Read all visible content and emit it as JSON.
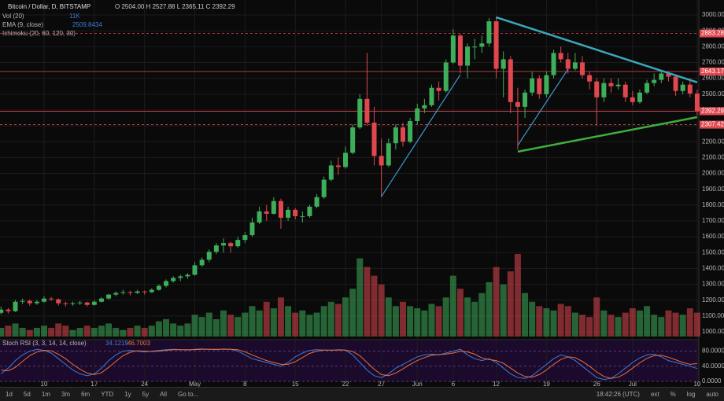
{
  "header": {
    "symbol": "Bitcoin / Dollar, D, BITSTAMP",
    "ohlc": "O 2504.00  H 2527.88  L 2365.11  C 2392.29",
    "volume": "Vol (20)",
    "volume_value": "11K",
    "ema": "EMA (9, close)",
    "ema_value": "2509.8434",
    "ichimoku": "Ichimoku (20, 60, 120, 30)"
  },
  "toolbar": {
    "buttons": [
      "1d",
      "5d",
      "1m",
      "3m",
      "6m",
      "YTD",
      "1y",
      "5y",
      "All",
      "Go to..."
    ],
    "time": "18:42:26 (UTC)",
    "right_buttons": [
      "ext",
      "%",
      "log",
      "auto"
    ]
  },
  "chart_data": {
    "type": "candlestick",
    "up_color": "#3fae5a",
    "down_color": "#e0474f",
    "categories": [
      null,
      null,
      null,
      null,
      null,
      null,
      "10",
      null,
      null,
      null,
      null,
      null,
      null,
      "17",
      null,
      null,
      null,
      null,
      null,
      null,
      "24",
      null,
      null,
      null,
      null,
      null,
      null,
      "May",
      null,
      null,
      null,
      null,
      null,
      null,
      "8",
      null,
      null,
      null,
      null,
      null,
      null,
      "15",
      null,
      null,
      null,
      null,
      null,
      null,
      "22",
      null,
      null,
      null,
      null,
      "27",
      null,
      null,
      null,
      null,
      "Jun",
      null,
      null,
      null,
      null,
      "6",
      null,
      null,
      null,
      null,
      null,
      "12",
      null,
      null,
      null,
      null,
      null,
      null,
      "19",
      null,
      null,
      null,
      null,
      null,
      null,
      "26",
      null,
      null,
      null,
      null,
      "Jul",
      null,
      null,
      null,
      null,
      null,
      null,
      null,
      null,
      "10"
    ],
    "candles": [
      [
        1120,
        1160,
        1110,
        1140
      ],
      [
        1140,
        1150,
        1115,
        1130
      ],
      [
        1130,
        1200,
        1125,
        1190
      ],
      [
        1190,
        1210,
        1175,
        1195
      ],
      [
        1195,
        1205,
        1165,
        1180
      ],
      [
        1180,
        1200,
        1170,
        1190
      ],
      [
        1190,
        1225,
        1185,
        1210
      ],
      [
        1210,
        1220,
        1195,
        1205
      ],
      [
        1205,
        1210,
        1165,
        1180
      ],
      [
        1180,
        1190,
        1160,
        1175
      ],
      [
        1175,
        1190,
        1165,
        1180
      ],
      [
        1180,
        1195,
        1170,
        1185
      ],
      [
        1185,
        1190,
        1160,
        1170
      ],
      [
        1170,
        1200,
        1165,
        1190
      ],
      [
        1190,
        1220,
        1185,
        1210
      ],
      [
        1210,
        1240,
        1205,
        1235
      ],
      [
        1235,
        1255,
        1225,
        1245
      ],
      [
        1245,
        1265,
        1235,
        1250
      ],
      [
        1250,
        1260,
        1230,
        1245
      ],
      [
        1245,
        1265,
        1240,
        1255
      ],
      [
        1255,
        1260,
        1235,
        1250
      ],
      [
        1250,
        1275,
        1245,
        1265
      ],
      [
        1265,
        1300,
        1260,
        1290
      ],
      [
        1290,
        1330,
        1280,
        1320
      ],
      [
        1320,
        1350,
        1310,
        1340
      ],
      [
        1340,
        1360,
        1320,
        1350
      ],
      [
        1350,
        1370,
        1335,
        1360
      ],
      [
        1360,
        1440,
        1355,
        1420
      ],
      [
        1420,
        1470,
        1410,
        1455
      ],
      [
        1455,
        1520,
        1440,
        1505
      ],
      [
        1505,
        1560,
        1490,
        1545
      ],
      [
        1545,
        1590,
        1500,
        1560
      ],
      [
        1560,
        1570,
        1500,
        1540
      ],
      [
        1540,
        1600,
        1530,
        1580
      ],
      [
        1580,
        1630,
        1560,
        1610
      ],
      [
        1610,
        1720,
        1600,
        1690
      ],
      [
        1690,
        1790,
        1680,
        1760
      ],
      [
        1760,
        1800,
        1700,
        1745
      ],
      [
        1745,
        1850,
        1740,
        1825
      ],
      [
        1825,
        1840,
        1650,
        1720
      ],
      [
        1720,
        1790,
        1700,
        1770
      ],
      [
        1770,
        1780,
        1710,
        1730
      ],
      [
        1730,
        1760,
        1690,
        1730
      ],
      [
        1730,
        1800,
        1720,
        1790
      ],
      [
        1790,
        1870,
        1780,
        1850
      ],
      [
        1850,
        1980,
        1840,
        1960
      ],
      [
        1960,
        2080,
        1950,
        2050
      ],
      [
        2050,
        2100,
        1990,
        2040
      ],
      [
        2040,
        2170,
        2030,
        2130
      ],
      [
        2130,
        2310,
        2120,
        2290
      ],
      [
        2290,
        2500,
        2280,
        2470
      ],
      [
        2470,
        2760,
        2300,
        2320
      ],
      [
        2320,
        2420,
        2050,
        2110
      ],
      [
        2110,
        2220,
        1850,
        2050
      ],
      [
        2050,
        2220,
        2040,
        2190
      ],
      [
        2190,
        2310,
        2150,
        2290
      ],
      [
        2290,
        2320,
        2170,
        2200
      ],
      [
        2200,
        2350,
        2190,
        2330
      ],
      [
        2330,
        2440,
        2310,
        2410
      ],
      [
        2410,
        2470,
        2380,
        2430
      ],
      [
        2430,
        2560,
        2420,
        2540
      ],
      [
        2540,
        2580,
        2460,
        2520
      ],
      [
        2520,
        2720,
        2510,
        2700
      ],
      [
        2700,
        2910,
        2690,
        2870
      ],
      [
        2870,
        2880,
        2630,
        2680
      ],
      [
        2680,
        2820,
        2600,
        2800
      ],
      [
        2800,
        2850,
        2720,
        2800
      ],
      [
        2800,
        2870,
        2760,
        2820
      ],
      [
        2820,
        2980,
        2800,
        2960
      ],
      [
        2960,
        2990,
        2600,
        2660
      ],
      [
        2660,
        2770,
        2480,
        2720
      ],
      [
        2720,
        2740,
        2380,
        2450
      ],
      [
        2450,
        2540,
        2150,
        2420
      ],
      [
        2420,
        2530,
        2350,
        2510
      ],
      [
        2510,
        2640,
        2490,
        2600
      ],
      [
        2600,
        2620,
        2470,
        2500
      ],
      [
        2500,
        2640,
        2480,
        2620
      ],
      [
        2620,
        2780,
        2600,
        2760
      ],
      [
        2760,
        2800,
        2700,
        2720
      ],
      [
        2720,
        2760,
        2630,
        2660
      ],
      [
        2660,
        2760,
        2650,
        2700
      ],
      [
        2700,
        2740,
        2600,
        2620
      ],
      [
        2620,
        2640,
        2530,
        2580
      ],
      [
        2580,
        2600,
        2300,
        2480
      ],
      [
        2480,
        2600,
        2450,
        2570
      ],
      [
        2570,
        2600,
        2510,
        2550
      ],
      [
        2550,
        2600,
        2530,
        2560
      ],
      [
        2560,
        2580,
        2450,
        2480
      ],
      [
        2480,
        2520,
        2430,
        2450
      ],
      [
        2450,
        2530,
        2440,
        2510
      ],
      [
        2510,
        2590,
        2500,
        2570
      ],
      [
        2570,
        2630,
        2550,
        2590
      ],
      [
        2590,
        2650,
        2570,
        2630
      ],
      [
        2630,
        2640,
        2580,
        2610
      ],
      [
        2610,
        2620,
        2490,
        2520
      ],
      [
        2520,
        2580,
        2500,
        2560
      ],
      [
        2560,
        2600,
        2480,
        2504
      ],
      [
        2504,
        2527.88,
        2365.11,
        2392.29
      ]
    ],
    "ylim": [
      1000,
      3000
    ],
    "yticks": [
      {
        "value": 1000,
        "label": "1000.00"
      },
      {
        "value": 1100,
        "label": "1100.00"
      },
      {
        "value": 1200,
        "label": "1200.00"
      },
      {
        "value": 1300,
        "label": "1300.00"
      },
      {
        "value": 1400,
        "label": "1400.00"
      },
      {
        "value": 1500,
        "label": "1500.00"
      },
      {
        "value": 1600,
        "label": "1600.00"
      },
      {
        "value": 1700,
        "label": "1700.00"
      },
      {
        "value": 1800,
        "label": "1800.00"
      },
      {
        "value": 1900,
        "label": "1900.00"
      },
      {
        "value": 2000,
        "label": "2000.00"
      },
      {
        "value": 2100,
        "label": "2100.00"
      },
      {
        "value": 2200,
        "label": "2200.00"
      },
      {
        "value": 2300,
        "label": "2300.00"
      },
      {
        "value": 2400,
        "label": "2400.00"
      },
      {
        "value": 2500,
        "label": "2500.00"
      },
      {
        "value": 2600,
        "label": "2600.00"
      },
      {
        "value": 2700,
        "label": "2700.00"
      },
      {
        "value": 2800,
        "label": "2800.00"
      },
      {
        "value": 2900,
        "label": "2900.00"
      },
      {
        "value": 3000,
        "label": "3000.00"
      }
    ],
    "grid": true,
    "volume": {
      "values": [
        4,
        5,
        6,
        4,
        3,
        4,
        5,
        4,
        6,
        5,
        3,
        4,
        5,
        4,
        5,
        6,
        4,
        3,
        4,
        5,
        4,
        5,
        7,
        8,
        6,
        5,
        6,
        10,
        9,
        11,
        8,
        12,
        10,
        9,
        11,
        14,
        12,
        16,
        13,
        18,
        14,
        11,
        12,
        10,
        11,
        14,
        16,
        15,
        18,
        22,
        36,
        32,
        28,
        24,
        18,
        14,
        16,
        14,
        13,
        12,
        15,
        14,
        18,
        28,
        22,
        18,
        16,
        20,
        25,
        32,
        24,
        30,
        38,
        20,
        16,
        14,
        13,
        12,
        15,
        14,
        11,
        10,
        9,
        18,
        12,
        10,
        9,
        11,
        13,
        12,
        14,
        10,
        9,
        12,
        11,
        10,
        13,
        11
      ]
    },
    "hlines": [
      {
        "value": 2883.28,
        "color": "#e0474f",
        "dash": true
      },
      {
        "value": 2643.17,
        "color": "#e0474f",
        "dash": false
      },
      {
        "value": 2392.29,
        "color": "#e0474f",
        "dash": false
      },
      {
        "value": 2307.42,
        "color": "#e0474f",
        "dash": true
      }
    ],
    "trendlines": [
      {
        "color": "#3aa8b8",
        "points": [
          [
            69,
            2985
          ],
          [
            97,
            2575
          ]
        ]
      },
      {
        "color": "#3fae3f",
        "points": [
          [
            72,
            2137
          ],
          [
            97,
            2355
          ]
        ]
      },
      {
        "color": "#3a9ad0",
        "points": [
          [
            53,
            1854
          ],
          [
            64,
            2623
          ]
        ]
      },
      {
        "color": "#3a9ad0",
        "points": [
          [
            72,
            2177
          ],
          [
            79,
            2658
          ]
        ]
      }
    ],
    "stoch": {
      "title": "Stoch RSI (3, 3, 14, 14, close)",
      "ylim": [
        0,
        100
      ],
      "yticks": [
        {
          "value": 80,
          "label": "80.0000"
        },
        {
          "value": 40,
          "label": "40.0000"
        },
        {
          "value": 0,
          "label": "0.0000"
        }
      ],
      "series": [
        {
          "color": "#3b7bd8",
          "value_label": "34.1219",
          "values": [
            20,
            35,
            55,
            70,
            80,
            85,
            82,
            75,
            60,
            45,
            30,
            20,
            15,
            20,
            35,
            55,
            70,
            80,
            82,
            80,
            78,
            80,
            82,
            84,
            85,
            84,
            83,
            85,
            86,
            85,
            84,
            86,
            85,
            80,
            70,
            60,
            55,
            50,
            45,
            40,
            50,
            65,
            75,
            82,
            84,
            83,
            82,
            84,
            83,
            70,
            50,
            30,
            15,
            10,
            20,
            35,
            45,
            55,
            65,
            70,
            72,
            70,
            75,
            80,
            85,
            70,
            60,
            55,
            60,
            50,
            35,
            20,
            10,
            8,
            15,
            30,
            45,
            60,
            70,
            65,
            55,
            40,
            25,
            10,
            5,
            8,
            20,
            35,
            50,
            62,
            70,
            72,
            65,
            55,
            50,
            45,
            40,
            34
          ]
        },
        {
          "color": "#e8703a",
          "value_label": "46.7003",
          "values": [
            30,
            28,
            37,
            53,
            68,
            78,
            82,
            81,
            72,
            60,
            45,
            32,
            22,
            18,
            23,
            37,
            53,
            68,
            77,
            81,
            80,
            79,
            80,
            82,
            84,
            84,
            84,
            84,
            85,
            85,
            85,
            85,
            85,
            84,
            78,
            70,
            62,
            55,
            50,
            45,
            45,
            52,
            63,
            74,
            80,
            83,
            83,
            83,
            83,
            79,
            68,
            50,
            32,
            18,
            15,
            22,
            33,
            45,
            55,
            63,
            69,
            71,
            72,
            75,
            80,
            78,
            72,
            62,
            58,
            55,
            48,
            35,
            22,
            13,
            11,
            18,
            30,
            45,
            58,
            65,
            63,
            53,
            40,
            25,
            13,
            8,
            11,
            21,
            35,
            49,
            61,
            68,
            69,
            64,
            57,
            50,
            45,
            47
          ]
        }
      ]
    }
  }
}
